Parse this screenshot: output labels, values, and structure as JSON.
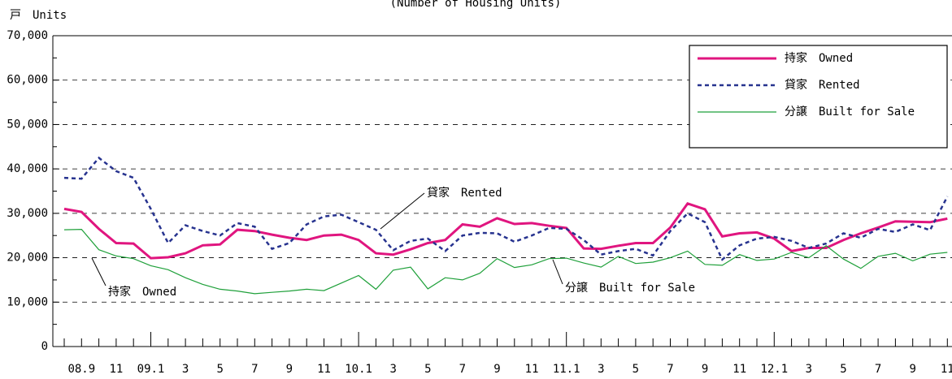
{
  "chart_data": {
    "type": "line",
    "subtitle": "(Number of Housing Units)",
    "y_axis_label": "戸　Units",
    "categories": [
      null,
      "08.9",
      null,
      "11",
      null,
      "09.1",
      null,
      "3",
      null,
      "5",
      null,
      "7",
      null,
      "9",
      null,
      "11",
      null,
      "10.1",
      null,
      "3",
      null,
      "5",
      null,
      "7",
      null,
      "9",
      null,
      "11",
      null,
      "11.1",
      null,
      "3",
      null,
      "5",
      null,
      "7",
      null,
      "9",
      null,
      "11",
      null,
      "12.1",
      null,
      "3",
      null,
      "5",
      null,
      "7",
      null,
      "9",
      null,
      "11"
    ],
    "series": [
      {
        "name": "持家　Owned",
        "color": "#e0157f",
        "style": "solid",
        "width": 3,
        "values": [
          31000,
          30300,
          26500,
          23300,
          23200,
          19900,
          20100,
          21000,
          22800,
          23000,
          26300,
          26000,
          25200,
          24500,
          24000,
          25000,
          25200,
          24000,
          21000,
          20700,
          21900,
          23300,
          24000,
          27500,
          27000,
          28900,
          27600,
          27800,
          27200,
          26700,
          22100,
          22000,
          22700,
          23300,
          23300,
          26800,
          32200,
          30900,
          24800,
          25500,
          25700,
          24300,
          21500,
          22200,
          22200,
          24000,
          25500,
          26800,
          28200,
          28100,
          28000,
          28800
        ]
      },
      {
        "name": "貸家　Rented",
        "color": "#27338f",
        "style": "dashed",
        "width": 2.5,
        "values": [
          38000,
          37800,
          42500,
          39500,
          38000,
          31000,
          23300,
          27300,
          26000,
          25000,
          27800,
          27000,
          22000,
          23300,
          27500,
          29300,
          29700,
          28000,
          26300,
          21700,
          23800,
          24300,
          21500,
          25000,
          25600,
          25500,
          23600,
          25000,
          26700,
          26500,
          24000,
          20700,
          21500,
          22000,
          20500,
          26000,
          30000,
          28000,
          19600,
          22800,
          24300,
          24700,
          23800,
          22200,
          23200,
          25500,
          24500,
          26500,
          25800,
          27500,
          26200,
          33800
        ]
      },
      {
        "name": "分譲　Built for Sale",
        "color": "#1fa03a",
        "style": "solid",
        "width": 1.2,
        "values": [
          26300,
          26400,
          21800,
          20400,
          19800,
          18200,
          17300,
          15500,
          14000,
          12900,
          12500,
          11900,
          12200,
          12500,
          12900,
          12600,
          14300,
          16000,
          12900,
          17200,
          17900,
          13000,
          15500,
          15000,
          16500,
          19800,
          17800,
          18400,
          19800,
          19900,
          18800,
          17900,
          20300,
          18700,
          19000,
          20000,
          21500,
          18500,
          18300,
          20700,
          19400,
          19700,
          21200,
          20000,
          22700,
          19700,
          17600,
          20300,
          21000,
          19300,
          20800,
          21200
        ]
      }
    ],
    "annotations": [
      "貸家　Rented",
      "持家　Owned",
      "分譲　Built for Sale"
    ],
    "ylim": [
      0,
      70000
    ],
    "yticks": [
      0,
      {
        "value": 10000,
        "label": "10,000"
      },
      {
        "value": 20000,
        "label": "20,000"
      },
      {
        "value": 30000,
        "label": "30,000"
      },
      {
        "value": 40000,
        "label": "40,000"
      },
      {
        "value": 50000,
        "label": "50,000"
      },
      {
        "value": 60000,
        "label": "60,000"
      },
      {
        "value": 70000,
        "label": "70,000"
      }
    ],
    "grid": true,
    "legend": "upper right"
  }
}
